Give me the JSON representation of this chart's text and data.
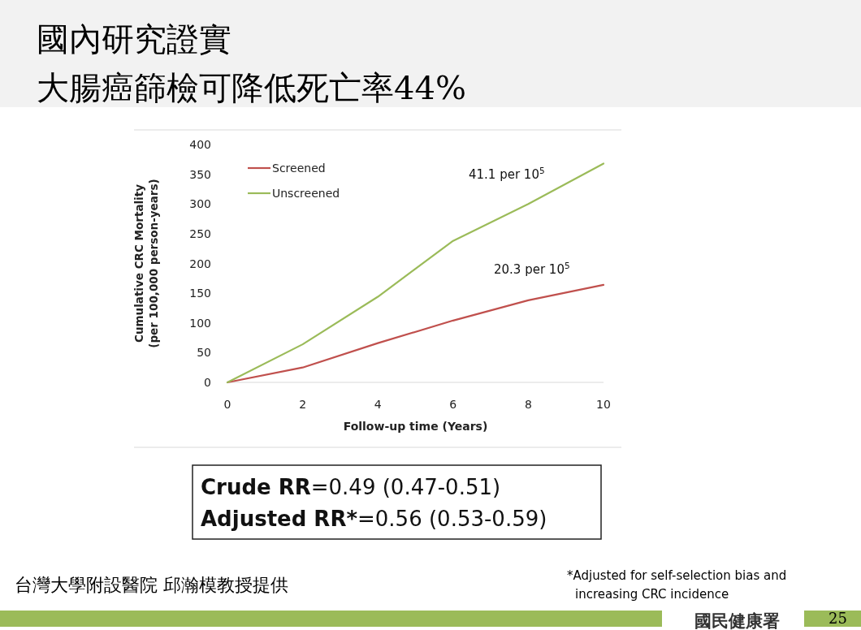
{
  "chart_data": {
    "type": "line",
    "title": "國內研究證實",
    "subtitle": "大腸癌篩檢可降低死亡率44%",
    "xlabel": "Follow-up time (Years)",
    "ylabel": "Cumulative CRC Mortality\n(per 100,000 person-years)",
    "x": [
      0,
      2,
      4,
      6,
      8,
      10
    ],
    "series": [
      {
        "name": "Screened",
        "color": "#c0504d",
        "values": [
          0,
          25,
          66,
          104,
          138,
          164
        ]
      },
      {
        "name": "Unscreened",
        "color": "#9bbb59",
        "values": [
          0,
          64,
          144,
          238,
          300,
          368
        ]
      }
    ],
    "xlim": [
      0,
      10
    ],
    "xticks": [
      0,
      2,
      4,
      6,
      8,
      10
    ],
    "ylim": [
      0,
      400
    ],
    "yticks": [
      0,
      50,
      100,
      150,
      200,
      250,
      300,
      350,
      400
    ],
    "legend": "top left",
    "grid": false,
    "marker": "none",
    "line_style": "solid",
    "annotations": [
      "41.1 per 10$^{5}$",
      "20.3 per 10$^{5}$",
      "Crude RR=0.49 (0.47-0.51)",
      "Adjusted RR*=0.56 (0.53-0.59)",
      "台灣大學附設醫院 邱瀚模教授提供",
      "*Adjusted for self-selection bias and\nincreasing CRC incidence",
      "國民健康署",
      "25"
    ]
  }
}
